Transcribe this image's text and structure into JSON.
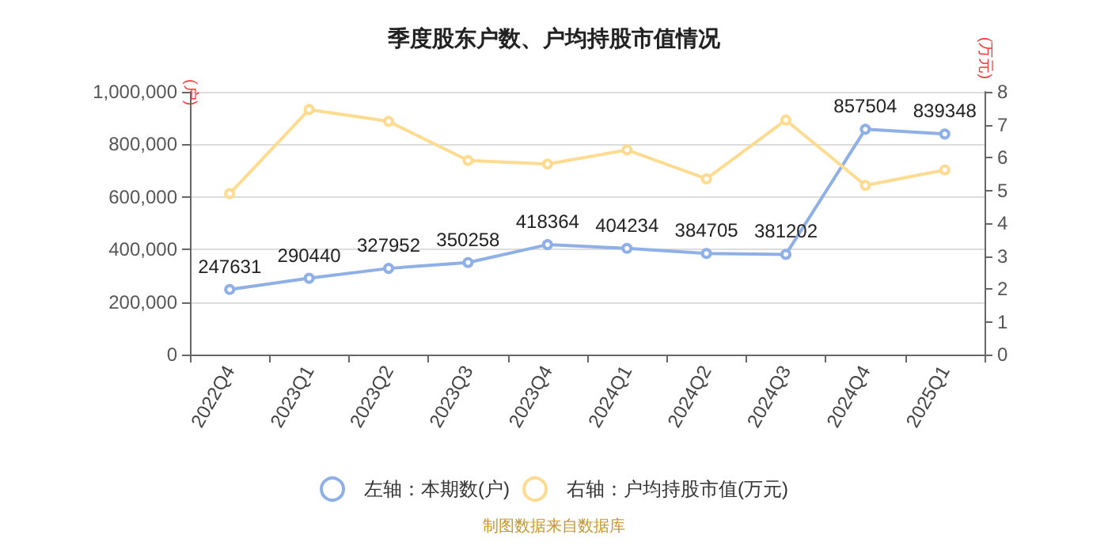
{
  "chart_data": {
    "type": "line",
    "title": "季度股东户数、户均持股市值情况",
    "ylabel": "(户)",
    "y2label": "(万元)",
    "categories": [
      "2022Q4",
      "2023Q1",
      "2023Q2",
      "2023Q3",
      "2023Q4",
      "2024Q1",
      "2024Q2",
      "2024Q3",
      "2024Q4",
      "2025Q1"
    ],
    "series": [
      {
        "name": "左轴：本期数(户)",
        "color": "#8eb0e6",
        "values": [
          247631,
          290440,
          327952,
          350258,
          418364,
          404234,
          384705,
          381202,
          857504,
          839348
        ],
        "data_labels": true
      },
      {
        "name": "右轴：户均持股市值(万元)",
        "color": "#fddc91",
        "axis": "y2",
        "values": [
          4.9,
          7.46,
          7.1,
          5.91,
          5.8,
          6.23,
          5.35,
          7.14,
          5.15,
          5.62
        ]
      }
    ],
    "ylim": [
      0,
      1000000
    ],
    "yticks": [
      0,
      {
        "value": 200000,
        "label": "200,000"
      },
      {
        "value": 400000,
        "label": "400,000"
      },
      {
        "value": 600000,
        "label": "600,000"
      },
      {
        "value": 800000,
        "label": "800,000"
      },
      {
        "value": 1000000,
        "label": "1,000,000"
      }
    ],
    "y2lim": [
      0,
      8
    ],
    "y2ticks": [
      0,
      1,
      2,
      3,
      4,
      5,
      6,
      7,
      8
    ],
    "grid": "y",
    "legend": "bottom",
    "marker": "circle",
    "line_style": "solid",
    "annotations": [
      "制图数据来自数据库"
    ]
  }
}
